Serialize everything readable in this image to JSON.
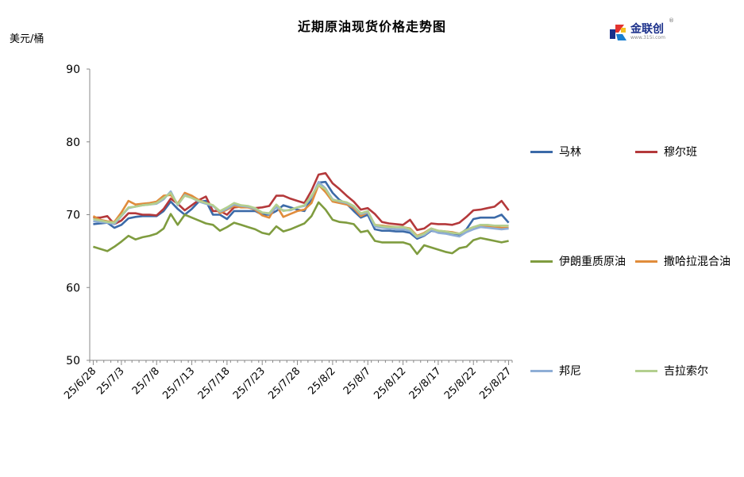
{
  "title": "近期原油现货价格走势图",
  "unit": "美元/桶",
  "logo": {
    "name": "金联创",
    "url": "www.315i.com",
    "mark": "®"
  },
  "chart_data": {
    "type": "line",
    "title": "近期原油现货价格走势图",
    "ylabel": "美元/桶",
    "ylim": [
      50,
      90
    ],
    "yticks": [
      50,
      60,
      70,
      80,
      90
    ],
    "grid": false,
    "legend_position": "right",
    "x_tick_labels": [
      "25/6/28",
      "25/7/3",
      "25/7/8",
      "25/7/13",
      "25/7/18",
      "25/7/23",
      "25/7/28",
      "25/8/2",
      "25/8/7",
      "25/8/12",
      "25/8/17",
      "25/8/22",
      "25/8/27"
    ],
    "x_tick_index": [
      0,
      4,
      9,
      14,
      19,
      24,
      29,
      34,
      39,
      44,
      49,
      54,
      59
    ],
    "num_points": 60,
    "series": [
      {
        "name": "马林",
        "color": "#3b6aa8",
        "values": [
          68.7,
          68.8,
          68.9,
          68.2,
          68.6,
          69.5,
          69.7,
          69.8,
          69.8,
          69.8,
          70.5,
          71.8,
          70.8,
          70.0,
          70.8,
          71.8,
          71.9,
          70.0,
          70.0,
          69.4,
          70.5,
          70.5,
          70.5,
          70.5,
          70.0,
          70.0,
          70.5,
          71.3,
          71.0,
          70.7,
          70.5,
          72.2,
          74.4,
          74.5,
          73.0,
          72.0,
          71.5,
          70.5,
          69.6,
          70.0,
          68.0,
          67.8,
          67.8,
          67.7,
          67.7,
          67.5,
          66.7,
          67.1,
          67.8,
          67.6,
          67.6,
          67.4,
          67.3,
          68.0,
          69.4,
          69.6,
          69.6,
          69.6,
          70.0,
          68.9
        ]
      },
      {
        "name": "穆尔班",
        "color": "#b4393b",
        "values": [
          69.6,
          69.6,
          69.8,
          68.7,
          69.2,
          70.2,
          70.2,
          70.0,
          70.0,
          69.9,
          70.8,
          72.2,
          71.5,
          70.6,
          71.3,
          72.0,
          72.5,
          70.5,
          70.5,
          70.0,
          71.0,
          71.1,
          71.0,
          70.9,
          71.0,
          71.2,
          72.6,
          72.6,
          72.2,
          71.9,
          71.6,
          73.3,
          75.5,
          75.7,
          74.3,
          73.5,
          72.6,
          71.8,
          70.7,
          70.9,
          70.1,
          69.0,
          68.8,
          68.7,
          68.6,
          69.3,
          67.9,
          68.1,
          68.8,
          68.7,
          68.7,
          68.6,
          68.9,
          69.7,
          70.6,
          70.7,
          70.9,
          71.1,
          71.9,
          70.6
        ]
      },
      {
        "name": "伊朗重质原油",
        "color": "#7f9c3f",
        "values": [
          65.6,
          65.3,
          65.0,
          65.6,
          66.3,
          67.1,
          66.6,
          66.9,
          67.1,
          67.4,
          68.1,
          70.1,
          68.6,
          70.0,
          69.6,
          69.2,
          68.8,
          68.6,
          67.8,
          68.3,
          68.9,
          68.6,
          68.3,
          68.0,
          67.5,
          67.3,
          68.4,
          67.7,
          68.0,
          68.4,
          68.8,
          69.8,
          71.7,
          70.7,
          69.3,
          69.0,
          68.9,
          68.7,
          67.6,
          67.8,
          66.4,
          66.2,
          66.2,
          66.2,
          66.2,
          65.9,
          64.6,
          65.8,
          65.5,
          65.2,
          64.9,
          64.7,
          65.4,
          65.6,
          66.5,
          66.8,
          66.6,
          66.4,
          66.2,
          66.4
        ]
      },
      {
        "name": "撒哈拉混合油",
        "color": "#e08c3b",
        "values": [
          69.8,
          69.3,
          69.1,
          69.0,
          70.3,
          71.9,
          71.4,
          71.5,
          71.6,
          71.8,
          72.6,
          72.7,
          71.5,
          73.0,
          72.6,
          72.0,
          71.6,
          71.3,
          70.2,
          70.7,
          71.2,
          71.0,
          71.0,
          70.7,
          69.9,
          69.6,
          71.3,
          69.7,
          70.1,
          70.5,
          70.7,
          71.6,
          74.1,
          73.1,
          71.8,
          71.6,
          71.4,
          70.9,
          69.8,
          70.3,
          68.6,
          68.5,
          68.4,
          68.3,
          68.3,
          68.1,
          67.1,
          67.5,
          68.1,
          67.8,
          67.7,
          67.6,
          67.4,
          67.9,
          68.3,
          68.5,
          68.4,
          68.3,
          68.2,
          68.2
        ]
      },
      {
        "name": "邦尼",
        "color": "#8faed6",
        "values": [
          69.1,
          69.0,
          68.9,
          68.7,
          69.8,
          70.9,
          71.1,
          71.3,
          71.4,
          71.5,
          72.1,
          73.2,
          71.3,
          72.7,
          72.3,
          71.8,
          71.5,
          71.2,
          70.4,
          70.8,
          71.4,
          71.2,
          71.1,
          70.8,
          70.3,
          70.1,
          71.0,
          70.6,
          70.6,
          71.0,
          71.2,
          72.4,
          74.5,
          73.6,
          72.1,
          71.8,
          71.6,
          71.1,
          70.1,
          70.3,
          68.4,
          68.2,
          68.1,
          68.0,
          68.0,
          67.8,
          66.9,
          67.2,
          67.9,
          67.5,
          67.4,
          67.2,
          67.0,
          67.6,
          68.0,
          68.3,
          68.2,
          68.1,
          68.0,
          68.1
        ]
      },
      {
        "name": "吉拉索尔",
        "color": "#b3cf8f",
        "values": [
          69.4,
          69.2,
          69.0,
          68.9,
          69.9,
          71.0,
          71.1,
          71.3,
          71.4,
          71.6,
          72.3,
          73.0,
          71.4,
          72.6,
          72.3,
          71.9,
          71.6,
          71.3,
          70.5,
          71.0,
          71.6,
          71.3,
          71.2,
          70.9,
          70.3,
          70.2,
          71.4,
          70.5,
          70.7,
          71.0,
          71.3,
          72.6,
          74.1,
          73.5,
          72.0,
          71.9,
          71.7,
          71.2,
          70.2,
          70.5,
          68.6,
          68.4,
          68.3,
          68.3,
          68.3,
          68.0,
          67.0,
          67.4,
          68.1,
          67.8,
          67.7,
          67.5,
          67.4,
          67.9,
          68.3,
          68.6,
          68.6,
          68.5,
          68.5,
          68.5
        ]
      }
    ]
  }
}
